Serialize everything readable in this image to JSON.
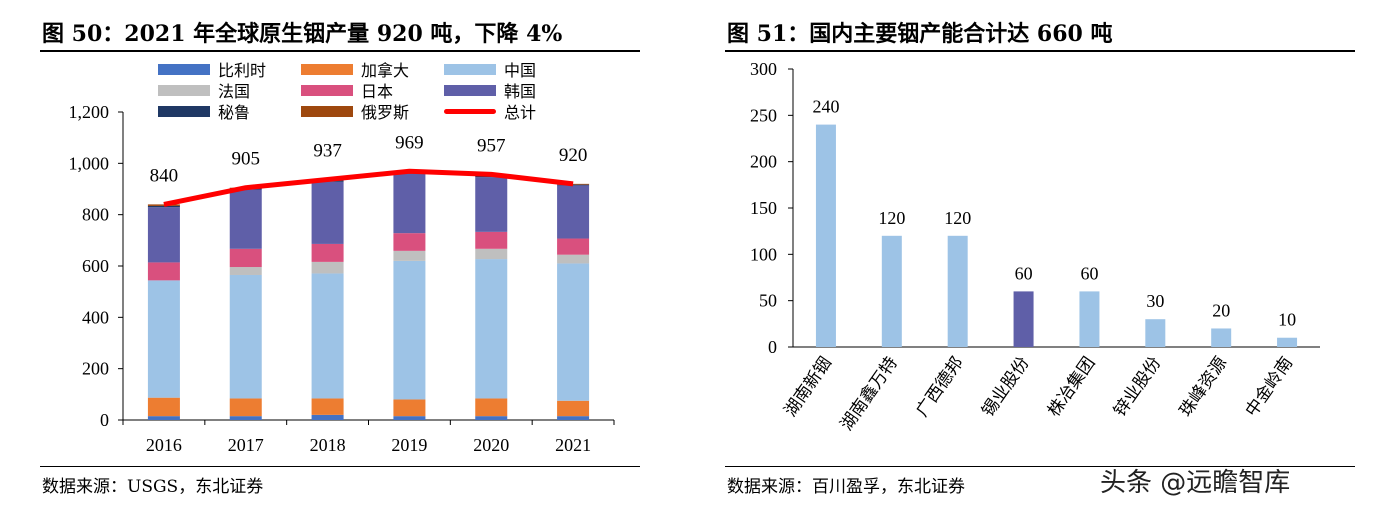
{
  "left": {
    "title": "图 50：2021 年全球原生铟产量 920 吨，下降 4%",
    "source": "数据来源：USGS，东北证券"
  },
  "right": {
    "title": "图 51：国内主要铟产能合计达 660 吨",
    "source": "数据来源：百川盈孚，东北证券"
  },
  "watermark": "头条 @远瞻智库",
  "chart_data": [
    {
      "type": "bar",
      "stacked": true,
      "categories": [
        "2016",
        "2017",
        "2018",
        "2019",
        "2020",
        "2021"
      ],
      "ylim": [
        0,
        1200
      ],
      "yticks": [
        "0",
        "200",
        "400",
        "600",
        "800",
        "1,000",
        "1,200"
      ],
      "legend": "top",
      "series": [
        {
          "name": "比利时",
          "color": "#4472C4",
          "values": [
            15,
            15,
            20,
            15,
            15,
            15
          ]
        },
        {
          "name": "加拿大",
          "color": "#ED7D31",
          "values": [
            72,
            69,
            64,
            65,
            69,
            60
          ]
        },
        {
          "name": "中国",
          "color": "#9DC3E6",
          "values": [
            457,
            481,
            487,
            540,
            543,
            535
          ]
        },
        {
          "name": "法国",
          "color": "#BFBFBF",
          "values": [
            0,
            31,
            45,
            39,
            40,
            34
          ]
        },
        {
          "name": "日本",
          "color": "#D9507E",
          "values": [
            70,
            71,
            70,
            69,
            66,
            63
          ]
        },
        {
          "name": "韩国",
          "color": "#5F5FA8",
          "values": [
            215,
            231,
            242,
            231,
            213,
            207
          ]
        },
        {
          "name": "秘鲁",
          "color": "#1F3864",
          "values": [
            5,
            4,
            5,
            5,
            5,
            3
          ]
        },
        {
          "name": "俄罗斯",
          "color": "#9E480E",
          "values": [
            6,
            3,
            4,
            5,
            6,
            3
          ]
        }
      ],
      "line": {
        "name": "总计",
        "color": "#FF0000",
        "values": [
          840,
          905,
          937,
          969,
          957,
          920
        ],
        "labels": [
          "840",
          "905",
          "937",
          "969",
          "957",
          "920"
        ]
      }
    },
    {
      "type": "bar",
      "categories": [
        "湖南新铟",
        "湖南鑫万特",
        "广西德邦",
        "锡业股份",
        "株冶集团",
        "锌业股份",
        "珠峰资源",
        "中金岭南"
      ],
      "values": [
        240,
        120,
        120,
        60,
        60,
        30,
        20,
        10
      ],
      "labels": [
        "240",
        "120",
        "120",
        "60",
        "60",
        "30",
        "20",
        "10"
      ],
      "ylim": [
        0,
        300
      ],
      "yticks": [
        "0",
        "50",
        "100",
        "150",
        "200",
        "250",
        "300"
      ],
      "colors": [
        "#9DC3E6",
        "#9DC3E6",
        "#9DC3E6",
        "#5F5FA8",
        "#9DC3E6",
        "#9DC3E6",
        "#9DC3E6",
        "#9DC3E6"
      ]
    }
  ]
}
